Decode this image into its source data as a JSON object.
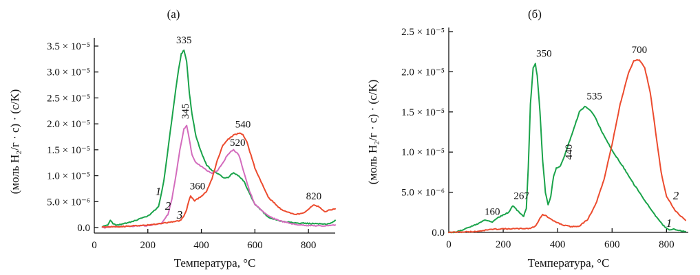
{
  "colors": {
    "green": "#1aa34a",
    "magenta": "#d36cbd",
    "red": "#ec4b2e"
  },
  "chart_data": [
    {
      "type": "line",
      "title": "(a)",
      "xlabel": "Температура, °C",
      "ylabel": "(моль H₂/г · c) · (c/K)",
      "xlim": [
        0,
        900
      ],
      "ylim": [
        0,
        3.5e-05
      ],
      "x_ticks": [
        0,
        200,
        400,
        600,
        800
      ],
      "x_tick_labels": [
        "0",
        "200",
        "400",
        "600",
        "800"
      ],
      "y_ticks": [
        0,
        5e-06,
        1e-05,
        1.5e-05,
        2e-05,
        2.5e-05,
        3e-05,
        3.5e-05
      ],
      "y_tick_labels": [
        "0.0",
        "5.0 × 10⁻⁶",
        "1.0 × 10⁻⁵",
        "1.5 × 10⁻⁵",
        "2.0 × 10⁻⁵",
        "2.5 × 10⁻⁵",
        "3.0 × 10⁻⁵",
        "3.5 × 10⁻⁵"
      ],
      "grid": false,
      "series": [
        {
          "name": "1",
          "color": "#1aa34a",
          "x": [
            30,
            50,
            60,
            70,
            80,
            100,
            150,
            200,
            240,
            260,
            280,
            300,
            315,
            325,
            335,
            345,
            355,
            365,
            380,
            400,
            420,
            440,
            460,
            480,
            500,
            510,
            520,
            540,
            560,
            580,
            600,
            650,
            700,
            750,
            800,
            850,
            880,
            900
          ],
          "y": [
            2e-07,
            5e-07,
            1.4e-06,
            8e-07,
            5e-07,
            6e-07,
            1.3e-06,
            2.2e-06,
            4e-06,
            9e-06,
            1.7e-05,
            2.5e-05,
            3.05e-05,
            3.35e-05,
            3.42e-05,
            3.2e-05,
            2.6e-05,
            2.2e-05,
            1.75e-05,
            1.45e-05,
            1.2e-05,
            1.1e-05,
            1.05e-05,
            9.7e-06,
            9.6e-06,
            1.02e-05,
            1.05e-05,
            1e-05,
            8.8e-06,
            6.5e-06,
            4.5e-06,
            2e-06,
            1.2e-06,
            9e-07,
            8e-07,
            7e-07,
            7e-07,
            1.4e-06
          ]
        },
        {
          "name": "2",
          "color": "#d36cbd",
          "x": [
            30,
            100,
            200,
            250,
            275,
            290,
            305,
            320,
            335,
            345,
            355,
            365,
            380,
            400,
            420,
            440,
            460,
            480,
            500,
            520,
            540,
            560,
            580,
            600,
            650,
            700,
            750,
            800,
            850,
            900
          ],
          "y": [
            0.0,
            2e-07,
            4e-07,
            8e-07,
            2.5e-06,
            5.5e-06,
            1e-05,
            1.5e-05,
            1.9e-05,
            1.96e-05,
            1.7e-05,
            1.4e-05,
            1.25e-05,
            1.18e-05,
            1.1e-05,
            1.05e-05,
            1.1e-05,
            1.25e-05,
            1.42e-05,
            1.5e-05,
            1.4e-05,
            1.05e-05,
            7e-06,
            4.5e-06,
            2.2e-06,
            1.2e-06,
            6e-07,
            4e-07,
            3e-07,
            5e-07
          ]
        },
        {
          "name": "3",
          "color": "#ec4b2e",
          "x": [
            30,
            100,
            200,
            250,
            280,
            300,
            320,
            335,
            345,
            355,
            360,
            375,
            400,
            420,
            440,
            460,
            480,
            500,
            520,
            540,
            555,
            570,
            600,
            650,
            700,
            750,
            780,
            800,
            820,
            840,
            860,
            880,
            900
          ],
          "y": [
            1e-07,
            2e-07,
            5e-07,
            8e-07,
            1e-06,
            1.2e-06,
            1.3e-06,
            2.2e-06,
            3.5e-06,
            5.5e-06,
            6e-06,
            5.2e-06,
            6e-06,
            7e-06,
            9.5e-06,
            1.3e-05,
            1.58e-05,
            1.7e-05,
            1.78e-05,
            1.82e-05,
            1.8e-05,
            1.65e-05,
            1.15e-05,
            5.8e-06,
            3.4e-06,
            2.5e-06,
            2.8e-06,
            3.5e-06,
            4.4e-06,
            4e-06,
            3e-06,
            3.4e-06,
            3.6e-06
          ]
        }
      ],
      "annotations": [
        {
          "text": "335",
          "x": 335,
          "y": 3.42e-05,
          "series": "1"
        },
        {
          "text": "345",
          "x": 345,
          "y": 1.96e-05,
          "series": "2",
          "rotated": true
        },
        {
          "text": "360",
          "x": 360,
          "y": 6e-06,
          "series": "3"
        },
        {
          "text": "520",
          "x": 520,
          "y": 1.5e-05,
          "series": "2"
        },
        {
          "text": "540",
          "x": 540,
          "y": 1.82e-05,
          "series": "3"
        },
        {
          "text": "820",
          "x": 820,
          "y": 4.4e-06,
          "series": "3"
        }
      ],
      "curve_labels": [
        "1",
        "2",
        "3"
      ]
    },
    {
      "type": "line",
      "title": "(б)",
      "xlabel": "Температура, °C",
      "ylabel": "(моль H₂/г · c) · (c/K)",
      "xlim": [
        0,
        880
      ],
      "ylim": [
        0,
        2.5e-05
      ],
      "x_ticks": [
        0,
        200,
        400,
        600,
        800
      ],
      "x_tick_labels": [
        "0",
        "200",
        "400",
        "600",
        "800"
      ],
      "y_ticks": [
        0,
        5e-06,
        1e-05,
        1.5e-05,
        2e-05,
        2.5e-05
      ],
      "y_tick_labels": [
        "0.0",
        "5.0 × 10⁻⁶",
        "1.0 × 10⁻⁵",
        "1.5 × 10⁻⁵",
        "2.0 × 10⁻⁵",
        "2.5 × 10⁻⁵"
      ],
      "grid": false,
      "series": [
        {
          "name": "1",
          "color": "#1aa34a",
          "x": [
            0,
            20,
            50,
            80,
            110,
            130,
            140,
            160,
            180,
            200,
            220,
            235,
            250,
            265,
            275,
            285,
            292,
            300,
            310,
            318,
            325,
            335,
            345,
            355,
            365,
            375,
            385,
            395,
            410,
            430,
            460,
            480,
            500,
            520,
            540,
            560,
            580,
            600,
            640,
            680,
            720,
            760,
            790,
            810,
            830,
            850,
            870
          ],
          "y": [
            0.0,
            1e-08,
            3e-07,
            7e-07,
            1.1e-06,
            1.5e-06,
            1.45e-06,
            1.3e-06,
            1.8e-06,
            2.2e-06,
            2.5e-06,
            3.3e-06,
            2.8e-06,
            2.3e-06,
            2e-06,
            3e-06,
            8e-06,
            1.6e-05,
            2.05e-05,
            2.1e-05,
            1.95e-05,
            1.5e-05,
            9e-06,
            5e-06,
            3.5e-06,
            4.5e-06,
            7e-06,
            8e-06,
            8.2e-06,
            1e-05,
            1.3e-05,
            1.5e-05,
            1.57e-05,
            1.52e-05,
            1.42e-05,
            1.27e-05,
            1.15e-05,
            1.02e-05,
            8.2e-06,
            6e-06,
            4e-06,
            2e-06,
            8e-07,
            3e-07,
            4e-07,
            2e-07,
            1e-07
          ]
        },
        {
          "name": "2",
          "color": "#ec4b2e",
          "x": [
            0,
            50,
            100,
            150,
            200,
            250,
            300,
            320,
            335,
            345,
            355,
            380,
            420,
            450,
            480,
            510,
            540,
            570,
            600,
            630,
            660,
            680,
            700,
            720,
            740,
            760,
            780,
            800,
            830,
            860,
            870
          ],
          "y": [
            0.0,
            5e-08,
            1e-07,
            3.5e-07,
            4.5e-07,
            4.5e-07,
            5e-07,
            8e-07,
            1.8e-06,
            2.2e-06,
            2.1e-06,
            1.5e-06,
            9e-07,
            7e-07,
            8e-07,
            1.6e-06,
            3.5e-06,
            6.5e-06,
            1.1e-05,
            1.6e-05,
            1.98e-05,
            2.14e-05,
            2.15e-05,
            2.05e-05,
            1.75e-05,
            1.25e-05,
            7.5e-06,
            4.5e-06,
            2.8e-06,
            1.8e-06,
            1.5e-06
          ]
        }
      ],
      "annotations": [
        {
          "text": "160",
          "x": 160,
          "y": 1.5e-06,
          "series": "1"
        },
        {
          "text": "267",
          "x": 267,
          "y": 3.3e-06,
          "series": "1"
        },
        {
          "text": "350",
          "x": 350,
          "y": 2.1e-05,
          "series": "1"
        },
        {
          "text": "440",
          "x": 440,
          "y": 8.2e-06,
          "series": "1",
          "rotated": true
        },
        {
          "text": "535",
          "x": 535,
          "y": 1.57e-05,
          "series": "1"
        },
        {
          "text": "700",
          "x": 700,
          "y": 2.15e-05,
          "series": "2"
        }
      ],
      "curve_labels": [
        "1",
        "2"
      ]
    }
  ]
}
